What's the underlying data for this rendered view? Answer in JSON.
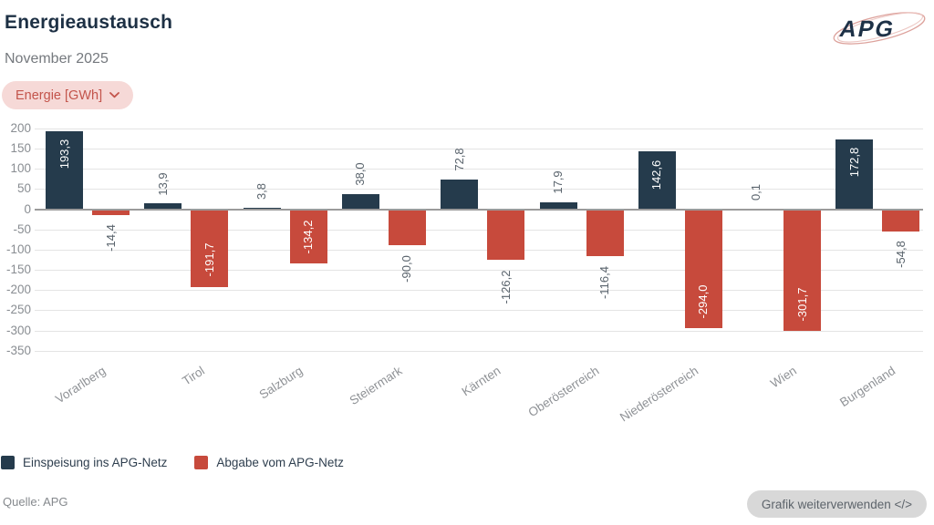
{
  "header": {
    "title": "Energieaustausch",
    "subtitle": "November 2025",
    "unit_selector_label": "Energie [GWh]"
  },
  "logo_text": "APG",
  "chart_data": {
    "type": "bar",
    "title": "Energieaustausch",
    "subtitle": "November 2025",
    "unit": "GWh",
    "categories": [
      "Vorarlberg",
      "Tirol",
      "Salzburg",
      "Steiermark",
      "Kärnten",
      "Oberösterreich",
      "Niederösterreich",
      "Wien",
      "Burgenland"
    ],
    "series": [
      {
        "name": "Einspeisung ins APG-Netz",
        "color": "#253b4c",
        "values": [
          193.3,
          13.9,
          3.8,
          38.0,
          72.8,
          17.9,
          142.6,
          0.1,
          172.8
        ]
      },
      {
        "name": "Abgabe vom APG-Netz",
        "color": "#c74a3c",
        "values": [
          -14.4,
          -191.7,
          -134.2,
          -90.0,
          -126.2,
          -116.4,
          -294.0,
          -301.7,
          -54.8
        ]
      }
    ],
    "ylim": [
      -350,
      200
    ],
    "yticks": [
      200,
      150,
      100,
      50,
      0,
      -50,
      -100,
      -150,
      -200,
      -250,
      -300,
      -350
    ],
    "grid": true,
    "legend_position": "bottom-left",
    "decimal_separator": ",",
    "value_label_color_outside": "#59636c",
    "value_label_color_inside": "#ffffff"
  },
  "footer": {
    "source": "Quelle: APG",
    "reuse_button_label": "Grafik weiterverwenden </>"
  }
}
